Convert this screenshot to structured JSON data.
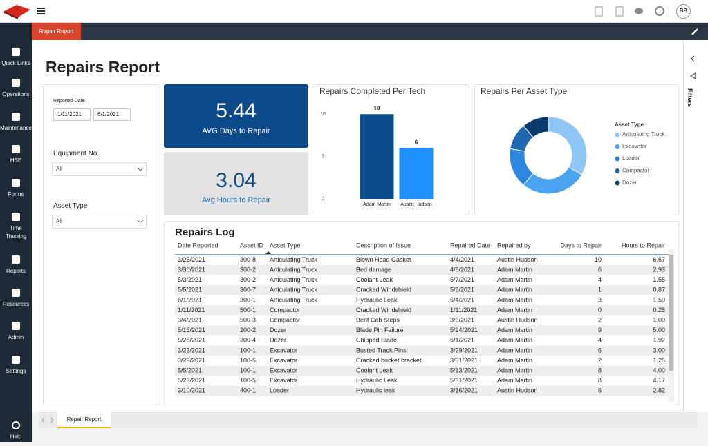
{
  "app": {
    "tab": "Repair Report",
    "avatar": "BB",
    "filters_panel": "Filters",
    "bottom_tab": "Repair Report"
  },
  "nav": [
    "Quick Links",
    "Operations",
    "Maintenance",
    "HSE",
    "Forms",
    "Time Tracking",
    "Reports",
    "Resources",
    "Admin",
    "Settings",
    "Help"
  ],
  "title": "Repairs Report",
  "filters": {
    "date_label": "Reported Date",
    "date_from": "1/11/2021",
    "date_to": "6/1/2021",
    "equipment_label": "Equipment No.",
    "equipment_value": "All",
    "asset_label": "Asset Type",
    "asset_value": "All"
  },
  "kpis": [
    {
      "value": "5.44",
      "label": "AVG Days to Repair"
    },
    {
      "value": "3.04",
      "label": "Avg Hours to Repair"
    }
  ],
  "chart_data": [
    {
      "type": "bar",
      "title": "Repairs Completed Per Tech",
      "categories": [
        "Adam Martin",
        "Austin Hudson"
      ],
      "values": [
        10,
        6
      ],
      "colors": [
        "#0b4a8b",
        "#1e90ff"
      ],
      "ylim": [
        0,
        11
      ],
      "yticks": [
        0,
        5,
        10
      ]
    },
    {
      "type": "pie",
      "title": "Repairs Per Asset Type",
      "legend_title": "Asset Type",
      "categories": [
        "Articulating Truck",
        "Excavator",
        "Loader",
        "Compactor",
        "Dozer"
      ],
      "values": [
        6,
        5,
        3,
        2,
        2
      ],
      "colors": [
        "#8ec5f5",
        "#4aa3f0",
        "#2f86e0",
        "#2166b0",
        "#0b3a6e"
      ]
    }
  ],
  "table": {
    "title": "Repairs Log",
    "columns": [
      "Date Reported",
      "Asset ID",
      "Asset Type",
      "Description of Issue",
      "Repaired Date",
      "Repaired by",
      "Days to Repair",
      "Hours to Repair"
    ],
    "rows": [
      [
        "3/25/2021",
        "300-8",
        "Articulating Truck",
        "Blown Head Gasket",
        "4/4/2021",
        "Austin Hudson",
        "10",
        "6.67"
      ],
      [
        "3/30/2021",
        "300-2",
        "Articulating Truck",
        "Bed damage",
        "4/5/2021",
        "Adam Martin",
        "6",
        "2.93"
      ],
      [
        "5/3/2021",
        "300-2",
        "Articulating Truck",
        "Coolant Leak",
        "5/7/2021",
        "Adam Martin",
        "4",
        "1.55"
      ],
      [
        "5/5/2021",
        "300-7",
        "Articulating Truck",
        "Cracked Windshield",
        "5/6/2021",
        "Adam Martin",
        "1",
        "0.87"
      ],
      [
        "6/1/2021",
        "300-1",
        "Articulating Truck",
        "Hydraulic Leak",
        "6/4/2021",
        "Adam Martin",
        "3",
        "1.50"
      ],
      [
        "1/11/2021",
        "500-1",
        "Compactor",
        "Cracked Windshield",
        "1/11/2021",
        "Adam Martin",
        "0",
        "0.25"
      ],
      [
        "3/4/2021",
        "500-3",
        "Compactor",
        "Bent Cab Steps",
        "3/6/2021",
        "Austin Hudson",
        "2",
        "1.00"
      ],
      [
        "5/15/2021",
        "200-2",
        "Dozer",
        "Blade Pin Failure",
        "5/24/2021",
        "Adam Martin",
        "9",
        "5.00"
      ],
      [
        "5/28/2021",
        "200-4",
        "Dozer",
        "Chipped Blade",
        "6/1/2021",
        "Adam Martin",
        "4",
        "1.92"
      ],
      [
        "3/23/2021",
        "100-1",
        "Excavator",
        "Busted Track Pins",
        "3/29/2021",
        "Adam Martin",
        "6",
        "3.00"
      ],
      [
        "3/29/2021",
        "100-5",
        "Excavator",
        "Cracked bucket bracket",
        "3/31/2021",
        "Adam Martin",
        "2",
        "1.25"
      ],
      [
        "5/5/2021",
        "100-1",
        "Excavator",
        "Coolant Leak",
        "5/13/2021",
        "Adam Martin",
        "8",
        "4.00"
      ],
      [
        "5/23/2021",
        "100-5",
        "Excavator",
        "Hydraulic Leak",
        "5/31/2021",
        "Adam Martin",
        "8",
        "4.17"
      ],
      [
        "3/10/2021",
        "400-1",
        "Loader",
        "Hydraulic leak",
        "3/16/2021",
        "Austin Hudson",
        "6",
        "2.82"
      ]
    ]
  }
}
